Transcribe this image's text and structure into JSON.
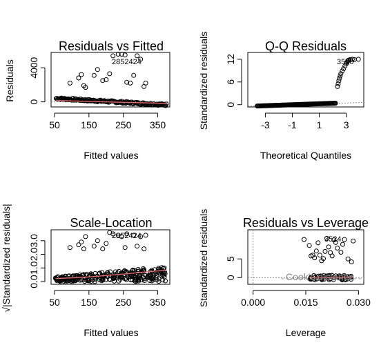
{
  "chart_data": [
    {
      "type": "scatter",
      "title": "Residuals vs Fitted",
      "xlabel": "Fitted values",
      "ylabel": "Residuals",
      "xlim": [
        40,
        385
      ],
      "ylim": [
        -600,
        5800
      ],
      "xticks": [
        50,
        150,
        250,
        350
      ],
      "yticks": [
        0,
        4000
      ],
      "ytick_labels": [
        "0",
        "4000"
      ],
      "annotations": [
        "2852424"
      ],
      "smoother_color": "#e26a6a",
      "refline": {
        "y": 0,
        "style": "dotted"
      },
      "points": [
        [
          95,
          2200
        ],
        [
          120,
          2800
        ],
        [
          128,
          3200
        ],
        [
          135,
          1900
        ],
        [
          140,
          1700
        ],
        [
          165,
          3100
        ],
        [
          175,
          3800
        ],
        [
          190,
          2500
        ],
        [
          200,
          2600
        ],
        [
          210,
          3300
        ],
        [
          220,
          5400
        ],
        [
          235,
          5600
        ],
        [
          245,
          5600
        ],
        [
          255,
          5500
        ],
        [
          260,
          2300
        ],
        [
          270,
          2200
        ],
        [
          280,
          3100
        ],
        [
          290,
          5400
        ],
        [
          300,
          5000
        ],
        [
          310,
          1800
        ],
        [
          315,
          2200
        ]
      ],
      "band": {
        "x": [
          55,
          375
        ],
        "y_low": -350,
        "y_high": 400
      }
    },
    {
      "type": "scatter",
      "title": "Q-Q Residuals",
      "xlabel": "Theoretical Quantiles",
      "ylabel": "Standardized residuals",
      "xlim": [
        -4.3,
        4.3
      ],
      "ylim": [
        -0.6,
        13.8
      ],
      "xticks": [
        -3,
        -1,
        1,
        3
      ],
      "yticks": [
        0,
        6,
        12
      ],
      "annotations": [
        "3520"
      ],
      "refline": {
        "from": [
          -4.3,
          -0.4
        ],
        "to": [
          4.3,
          0.6
        ],
        "style": "dotted"
      }
    },
    {
      "type": "scatter",
      "title": "Scale-Location",
      "xlabel": "Fitted values",
      "ylabel": "√|Standardized residuals|",
      "xlim": [
        40,
        385
      ],
      "ylim": [
        -0.2,
        3.8
      ],
      "xticks": [
        50,
        150,
        250,
        350
      ],
      "yticks": [
        0.0,
        1.0,
        2.0,
        3.0
      ],
      "ytick_labels": [
        "0.0",
        "1.0",
        "2.0",
        "3.0"
      ],
      "annotations": [
        "2852424"
      ],
      "smoother_color": "#e26a6a",
      "points": [
        [
          95,
          2.5
        ],
        [
          120,
          2.7
        ],
        [
          128,
          2.9
        ],
        [
          135,
          2.4
        ],
        [
          140,
          3.3
        ],
        [
          165,
          2.6
        ],
        [
          175,
          3.0
        ],
        [
          190,
          2.4
        ],
        [
          200,
          2.8
        ],
        [
          210,
          3.6
        ],
        [
          220,
          3.5
        ],
        [
          235,
          3.4
        ],
        [
          245,
          3.3
        ],
        [
          255,
          2.5
        ],
        [
          260,
          3.5
        ],
        [
          280,
          3.4
        ],
        [
          290,
          2.6
        ],
        [
          300,
          3.3
        ],
        [
          310,
          2.4
        ],
        [
          315,
          3.4
        ]
      ]
    },
    {
      "type": "scatter",
      "title": "Residuals vs Leverage",
      "xlabel": "Leverage",
      "ylabel": "Standardized residuals",
      "xlim": [
        -0.0015,
        0.0315
      ],
      "ylim": [
        -1.8,
        12.8
      ],
      "xticks": [
        0.0,
        0.015,
        0.03
      ],
      "xtick_labels": [
        "0.000",
        "0.015",
        "0.030"
      ],
      "yticks": [
        0,
        5
      ],
      "legend_text": "Cook's distance",
      "annotations": [
        "3524"
      ],
      "smoother_color": "#e26a6a",
      "points": [
        [
          0.0145,
          10.2
        ],
        [
          0.016,
          8.6
        ],
        [
          0.0165,
          5.8
        ],
        [
          0.017,
          6.0
        ],
        [
          0.0175,
          5.3
        ],
        [
          0.018,
          7.1
        ],
        [
          0.0185,
          9.3
        ],
        [
          0.019,
          6.0
        ],
        [
          0.0195,
          4.5
        ],
        [
          0.02,
          5.1
        ],
        [
          0.0205,
          7.0
        ],
        [
          0.021,
          10.5
        ],
        [
          0.0215,
          8.2
        ],
        [
          0.022,
          6.7
        ],
        [
          0.0225,
          5.8
        ],
        [
          0.023,
          10.1
        ],
        [
          0.0235,
          9.4
        ],
        [
          0.024,
          7.9
        ],
        [
          0.025,
          6.8
        ],
        [
          0.026,
          10.2
        ],
        [
          0.027,
          5.0
        ],
        [
          0.028,
          4.2
        ],
        [
          0.0285,
          9.8
        ],
        [
          0.0255,
          8.9
        ]
      ]
    }
  ]
}
